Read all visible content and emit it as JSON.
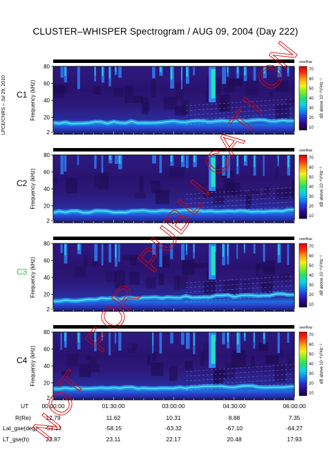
{
  "title": "CLUSTER–WHISPER Spectrogram / AUG 09, 2004 (Day 222)",
  "side_label": "LPCE/CNRS – Jul 29, 2010",
  "watermark": "NOT FOR PUBLICATION",
  "colorbar": {
    "overflow_label": "overflow",
    "ticks": [
      "70",
      "60",
      "50",
      "40",
      "30",
      "20",
      "10"
    ],
    "label": "dB above 10⁻⁸V²Hz⁻¹",
    "range": [
      5,
      72
    ],
    "colors": [
      "#1a0038",
      "#2a0a88",
      "#2a30d8",
      "#0a8cf0",
      "#12d2e6",
      "#20e070",
      "#80f020",
      "#f4f020",
      "#ffa010",
      "#ff3010",
      "#e00000"
    ]
  },
  "panels": [
    {
      "spacecraft": "C1",
      "label_color": "#000000"
    },
    {
      "spacecraft": "C2",
      "label_color": "#000000"
    },
    {
      "spacecraft": "C3",
      "label_color": "#22cc33"
    },
    {
      "spacecraft": "C4",
      "label_color": "#000000"
    }
  ],
  "chart_data": {
    "type": "heatmap",
    "title": "CLUSTER–WHISPER Spectrogram / AUG 09, 2004 (Day 222)",
    "ylabel": "Frequency (kHz)",
    "yticks": [
      "80",
      "60",
      "40",
      "20",
      "2"
    ],
    "ylim": [
      2,
      82
    ],
    "xlim": [
      "00:00:00",
      "06:00:00"
    ],
    "colorbar_label": "dB above 10⁻⁸V²Hz⁻¹",
    "colorbar_range": [
      5,
      72
    ],
    "series": [
      {
        "name": "C1"
      },
      {
        "name": "C2"
      },
      {
        "name": "C3"
      },
      {
        "name": "C4"
      }
    ]
  },
  "orbit_table": {
    "rows": [
      {
        "label": "UT",
        "values": [
          "00:00:00",
          "01:30:00",
          "03:00:00",
          "04:30:00",
          "06:00:00"
        ]
      },
      {
        "label": "R(Re)",
        "values": [
          "12.79",
          "11.62",
          "10.31",
          "8.88",
          "7.35"
        ]
      },
      {
        "label": "Lat_gse(deg)",
        "values": [
          "-53.13",
          "-58.15",
          "-63.32",
          "-67.10",
          "-64.27"
        ]
      },
      {
        "label": "LT_gse(h)",
        "values": [
          "23.87",
          "23.11",
          "22.17",
          "20.48",
          "17.93"
        ]
      }
    ]
  }
}
